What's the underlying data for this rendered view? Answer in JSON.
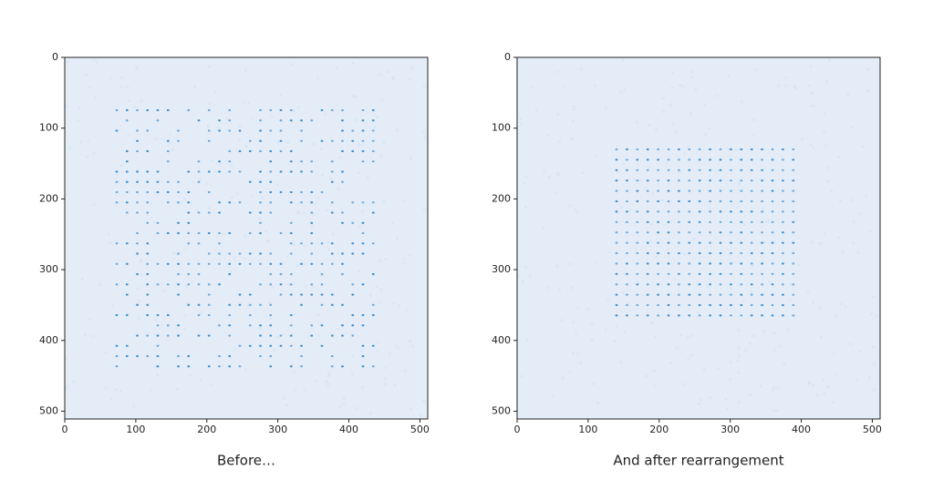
{
  "chart_data": [
    {
      "type": "image",
      "title": "Before…",
      "xlim": [
        0,
        511
      ],
      "ylim": [
        511,
        0
      ],
      "xticks": [
        0,
        100,
        200,
        300,
        400,
        500
      ],
      "yticks": [
        0,
        100,
        200,
        300,
        400,
        500
      ]
    },
    {
      "type": "image",
      "title": "And after rearrangement",
      "xlim": [
        0,
        511
      ],
      "ylim": [
        511,
        0
      ],
      "xticks": [
        0,
        100,
        200,
        300,
        400,
        500
      ],
      "yticks": [
        0,
        100,
        200,
        300,
        400,
        500
      ]
    }
  ]
}
